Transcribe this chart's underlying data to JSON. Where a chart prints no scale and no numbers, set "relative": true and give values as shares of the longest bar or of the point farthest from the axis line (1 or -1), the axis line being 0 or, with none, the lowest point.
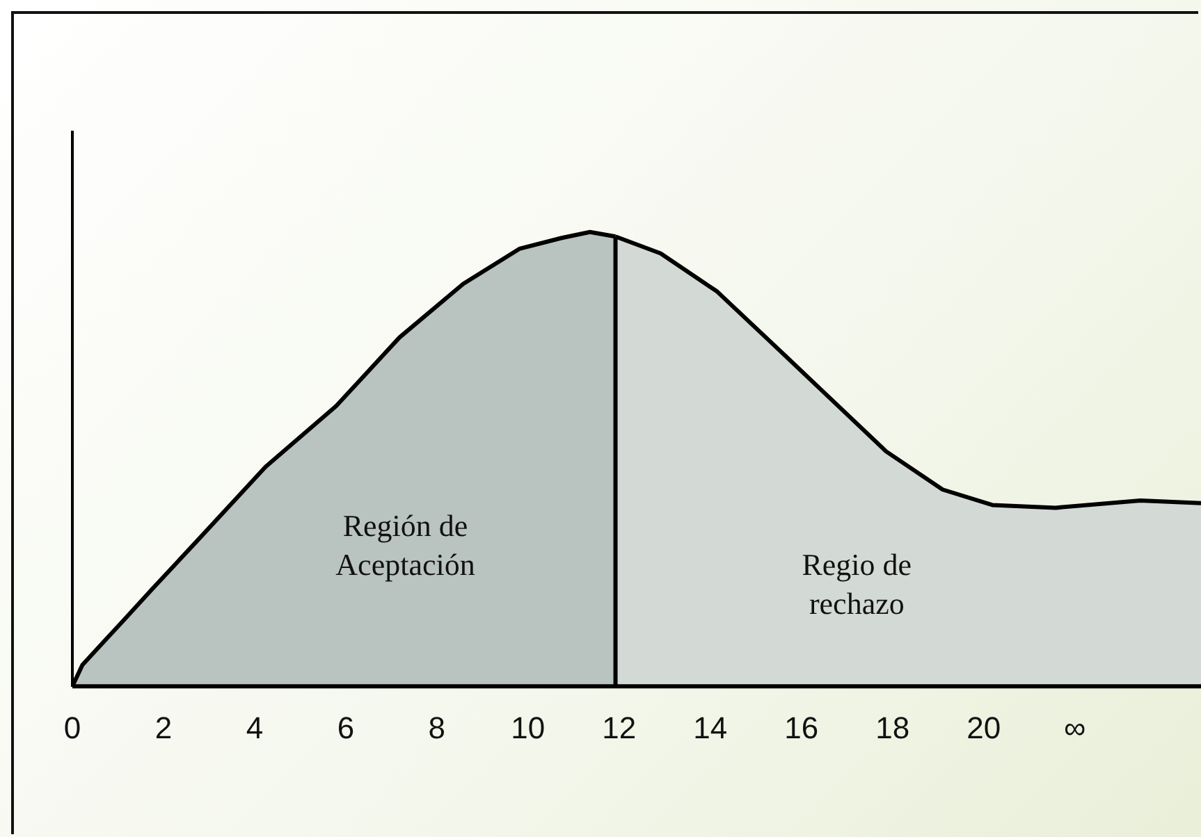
{
  "chart_data": {
    "type": "area",
    "relative": true,
    "xlim": [
      0,
      24.77
    ],
    "xticks": [
      0,
      2,
      4,
      6,
      8,
      10,
      12,
      14,
      16,
      18,
      20,
      {
        "value": 22,
        "label": "∞"
      }
    ],
    "grid": false,
    "legend": false,
    "marker": "none",
    "series": [
      {
        "color": "#b9c3c0",
        "x": [
          0,
          0.22,
          0.68,
          1.15,
          1.76,
          2.69,
          4.24,
          5.79,
          7.18,
          8.58,
          9.81,
          10.74,
          11.36,
          11.92
        ],
        "values": [
          0,
          0.047,
          0.097,
          0.148,
          0.215,
          0.315,
          0.483,
          0.617,
          0.768,
          0.886,
          0.963,
          0.987,
          1,
          0.99
        ]
      },
      {
        "color": "#d3d9d5",
        "x": [
          11.92,
          12.91,
          14.15,
          15.39,
          16.63,
          17.86,
          19.1,
          20.19,
          21.58,
          23.44,
          24.77
        ],
        "values": [
          0.99,
          0.953,
          0.869,
          0.752,
          0.634,
          0.517,
          0.433,
          0.399,
          0.393,
          0.409,
          0.403
        ]
      }
    ],
    "ref_lines": [
      {
        "axis": "x",
        "value": 11.92,
        "color": "#000000"
      }
    ],
    "annotations": [
      "Región de\nAceptación",
      "Regio de\nrechazo"
    ]
  }
}
